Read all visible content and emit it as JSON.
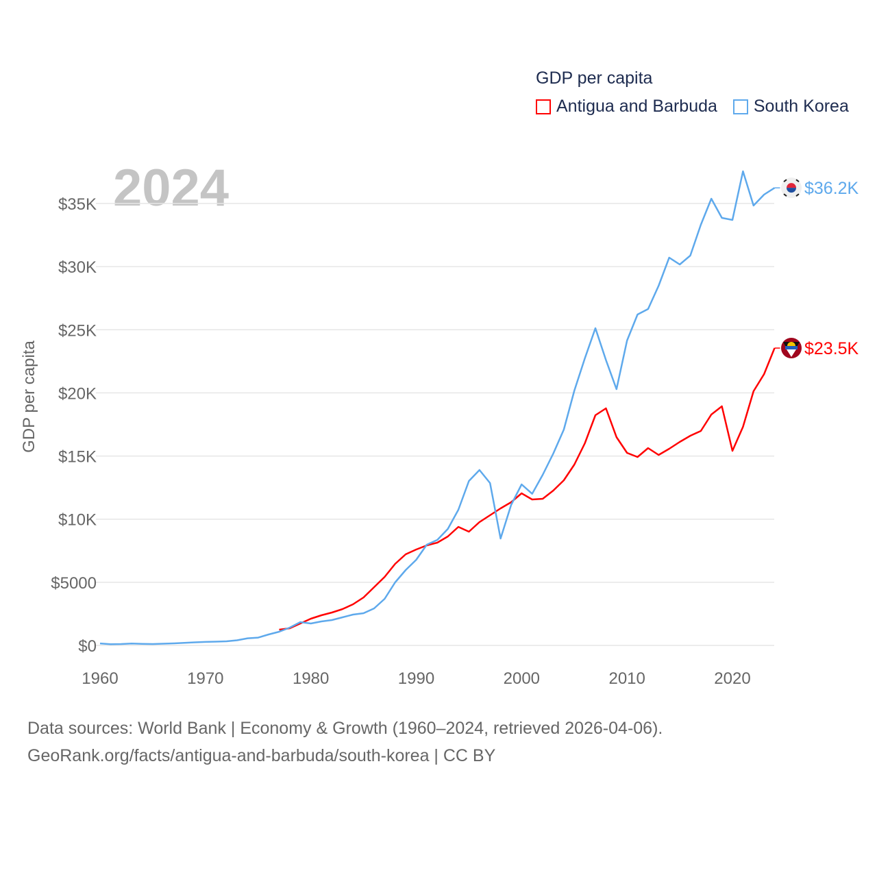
{
  "chart_data": {
    "type": "line",
    "title": "GDP per capita",
    "ylabel": "GDP per capita",
    "xlabel": "",
    "year_label": "2024",
    "xlim": [
      1960,
      2024
    ],
    "ylim": [
      0,
      36500
    ],
    "x_ticks": [
      "1960",
      "1970",
      "1980",
      "1990",
      "2000",
      "2010",
      "2020"
    ],
    "x_tick_values": [
      1960,
      1970,
      1980,
      1990,
      2000,
      2010,
      2020
    ],
    "y_ticks": [
      "$0",
      "$5000",
      "$10K",
      "$15K",
      "$20K",
      "$25K",
      "$30K",
      "$35K"
    ],
    "y_tick_values": [
      0,
      5000,
      10000,
      15000,
      20000,
      25000,
      30000,
      35000
    ],
    "grid": true,
    "legend_position": "top-right",
    "series": [
      {
        "name": "Antigua and Barbuda",
        "color": "#ff0000",
        "end_label": "$23.5K",
        "flag": "antigua-and-barbuda-flag",
        "x": [
          1977,
          1978,
          1979,
          1980,
          1981,
          1982,
          1983,
          1984,
          1985,
          1986,
          1987,
          1988,
          1989,
          1990,
          1991,
          1992,
          1993,
          1994,
          1995,
          1996,
          1997,
          1998,
          1999,
          2000,
          2001,
          2002,
          2003,
          2004,
          2005,
          2006,
          2007,
          2008,
          2009,
          2010,
          2011,
          2012,
          2013,
          2014,
          2015,
          2016,
          2017,
          2018,
          2019,
          2020,
          2021,
          2022,
          2023,
          2024
        ],
        "values": [
          1248,
          1357,
          1736,
          2116,
          2387,
          2604,
          2876,
          3256,
          3798,
          4612,
          5426,
          6457,
          7217,
          7597,
          7922,
          8139,
          8627,
          9387,
          9007,
          9767,
          10310,
          10852,
          11340,
          12046,
          11557,
          11612,
          12263,
          13077,
          14325,
          16007,
          18231,
          18774,
          16495,
          15247,
          14922,
          15627,
          15084,
          15573,
          16115,
          16604,
          16983,
          18286,
          18937,
          15410,
          17309,
          20131,
          21487,
          23549
        ]
      },
      {
        "name": "South Korea",
        "color": "#5ea9ec",
        "end_label": "$36.2K",
        "flag": "south-korea-flag",
        "x": [
          1960,
          1961,
          1962,
          1963,
          1964,
          1965,
          1966,
          1967,
          1968,
          1969,
          1970,
          1971,
          1972,
          1973,
          1974,
          1975,
          1976,
          1977,
          1978,
          1979,
          1980,
          1981,
          1982,
          1983,
          1984,
          1985,
          1986,
          1987,
          1988,
          1989,
          1990,
          1991,
          1992,
          1993,
          1994,
          1995,
          1996,
          1997,
          1998,
          1999,
          2000,
          2001,
          2002,
          2003,
          2004,
          2005,
          2006,
          2007,
          2008,
          2009,
          2010,
          2011,
          2012,
          2013,
          2014,
          2015,
          2016,
          2017,
          2018,
          2019,
          2020,
          2021,
          2022,
          2023,
          2024
        ],
        "values": [
          158,
          94,
          106,
          146,
          124,
          109,
          133,
          162,
          199,
          243,
          279,
          301,
          324,
          407,
          563,
          616,
          868,
          1085,
          1411,
          1845,
          1736,
          1899,
          2008,
          2225,
          2442,
          2550,
          2930,
          3690,
          4992,
          5969,
          6783,
          7976,
          8356,
          9224,
          10743,
          13022,
          13891,
          12860,
          8465,
          11123,
          12751,
          12011,
          13511,
          15193,
          17092,
          20185,
          22735,
          25122,
          22600,
          20297,
          24146,
          26207,
          26641,
          28487,
          30711,
          30169,
          30874,
          33316,
          35378,
          33858,
          33696,
          37548,
          34835,
          35703,
          36238
        ]
      }
    ]
  },
  "footer": {
    "line1": "Data sources: World Bank | Economy & Growth (1960–2024, retrieved 2026-04-06).",
    "line2": "GeoRank.org/facts/antigua-and-barbuda/south-korea | CC BY"
  }
}
